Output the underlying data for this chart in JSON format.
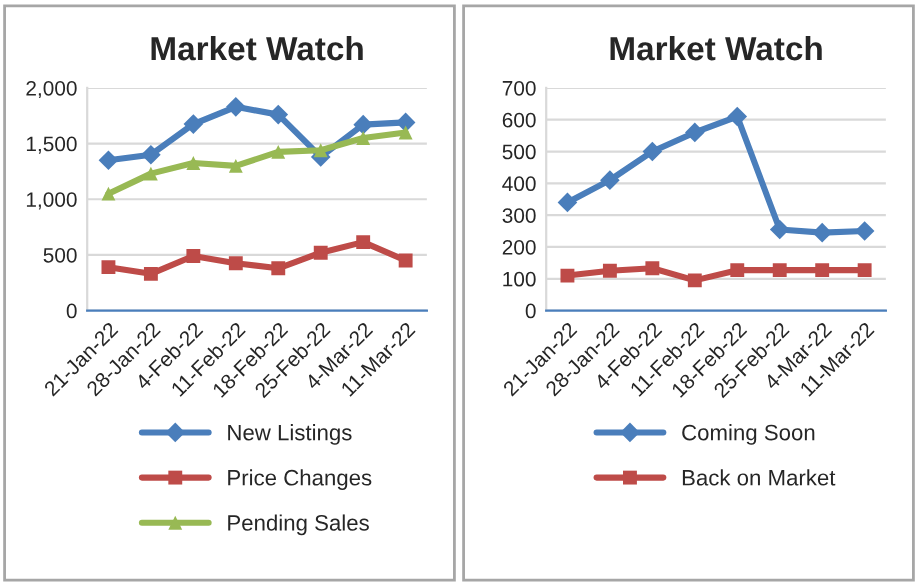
{
  "chart_data": [
    {
      "type": "line",
      "title": "Market Watch",
      "categories": [
        "21-Jan-22",
        "28-Jan-22",
        "4-Feb-22",
        "11-Feb-22",
        "18-Feb-22",
        "25-Feb-22",
        "4-Mar-22",
        "11-Mar-22"
      ],
      "series": [
        {
          "name": "New Listings",
          "color": "#4a7ebb",
          "marker": "diamond",
          "values": [
            1350,
            1400,
            1675,
            1830,
            1760,
            1380,
            1670,
            1690
          ]
        },
        {
          "name": "Price Changes",
          "color": "#be4b48",
          "marker": "square",
          "values": [
            390,
            330,
            490,
            425,
            380,
            520,
            615,
            450
          ]
        },
        {
          "name": "Pending Sales",
          "color": "#98b954",
          "marker": "triangle",
          "values": [
            1050,
            1230,
            1325,
            1300,
            1425,
            1440,
            1550,
            1600
          ]
        }
      ],
      "ylim": [
        0,
        2000
      ],
      "yticks": [
        {
          "value": 0,
          "label": "0"
        },
        {
          "value": 500,
          "label": "500"
        },
        {
          "value": 1000,
          "label": "1,000"
        },
        {
          "value": 1500,
          "label": "1,500"
        },
        {
          "value": 2000,
          "label": "2,000"
        }
      ],
      "grid": "y",
      "legend": "bottom",
      "line_style": "solid"
    },
    {
      "type": "line",
      "title": "Market Watch",
      "categories": [
        "21-Jan-22",
        "28-Jan-22",
        "4-Feb-22",
        "11-Feb-22",
        "18-Feb-22",
        "25-Feb-22",
        "4-Mar-22",
        "11-Mar-22"
      ],
      "series": [
        {
          "name": "Coming Soon",
          "color": "#4a7ebb",
          "marker": "diamond",
          "values": [
            340,
            410,
            500,
            560,
            610,
            255,
            245,
            250
          ]
        },
        {
          "name": "Back on Market",
          "color": "#be4b48",
          "marker": "square",
          "values": [
            110,
            125,
            133,
            95,
            127,
            127,
            127,
            127
          ]
        }
      ],
      "ylim": [
        0,
        700
      ],
      "yticks": [
        0,
        100,
        200,
        300,
        400,
        500,
        600,
        700
      ],
      "grid": "y",
      "legend": "bottom",
      "line_style": "solid"
    }
  ]
}
